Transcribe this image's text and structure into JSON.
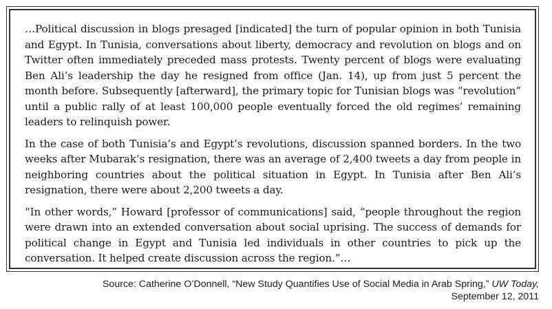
{
  "excerpt": {
    "paragraphs": [
      "…Political discussion in blogs presaged [indicated] the turn of popular opinion in both Tunisia and Egypt. In Tunisia, conversations about liberty, democracy and revolution on blogs and on Twitter often immediately preceded mass protests. Twenty percent of blogs were evaluating Ben Ali’s leadership the day he resigned from office (Jan. 14), up from just 5 percent the month before. Subsequently [afterward], the primary topic for Tunisian blogs was “revolution” until a public rally of at least 100,000 people eventually forced the old regimes’ remaining leaders to relinquish power.",
      "In the case of both Tunisia’s and Egypt’s revolutions, discussion spanned borders. In the two weeks after Mubarak’s resignation, there was an average of 2,400 tweets a day from people in neighboring countries about the political situation in Egypt. In Tunisia after Ben Ali’s resignation, there were about 2,200 tweets a day.",
      "“In other words,” Howard [professor of communications] said, “people throughout the region were drawn into an extended conversation about social uprising. The success of demands for political change in Egypt and Tunisia led individuals in other countries to pick up the conversation. It helped create discussion across the region.”…"
    ]
  },
  "source": {
    "prefix": "Source: Catherine O’Donnell, “New Study Quantifies Use of Social Media in Arab Spring,”",
    "publication": "UW Today,",
    "date": "September 12, 2011"
  }
}
